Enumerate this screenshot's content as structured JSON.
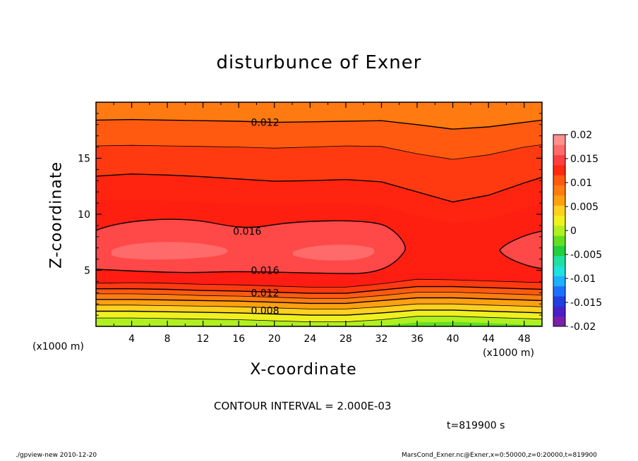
{
  "chart_data": {
    "type": "heatmap",
    "title": "disturbunce of Exner",
    "xlabel": "X-coordinate",
    "ylabel": "Z-coordinate",
    "x_unit_label": "(x1000 m)",
    "xlim": [
      0,
      50
    ],
    "ylim": [
      0,
      20
    ],
    "x_ticks": [
      4,
      8,
      12,
      16,
      20,
      24,
      28,
      32,
      36,
      40,
      44,
      48
    ],
    "y_ticks": [
      5,
      10,
      15
    ],
    "colorbar": {
      "range": [
        -0.02,
        0.02
      ],
      "ticks": [
        "0.02",
        "0.015",
        "0.01",
        "0.005",
        "0",
        "-0.005",
        "-0.01",
        "-0.015",
        "-0.02"
      ],
      "colors": [
        "#7a1fa8",
        "#4a1fc8",
        "#1f3fe0",
        "#1f6fff",
        "#1fb0ff",
        "#20e0e0",
        "#20e0a0",
        "#20d040",
        "#60e020",
        "#b0f020",
        "#f0f020",
        "#ffd020",
        "#ffa010",
        "#ff7d10",
        "#ff5a10",
        "#ff2a10",
        "#ff4040",
        "#ff6a6a",
        "#ff9090"
      ]
    },
    "contour_interval_text": "CONTOUR INTERVAL = 2.000E-03",
    "contour_labels": [
      {
        "value": "0.012",
        "x": 15,
        "z": 18.2
      },
      {
        "value": "0.016",
        "x": 13,
        "z": 8.5
      },
      {
        "value": "0.016",
        "x": 15,
        "z": 5.0
      },
      {
        "value": "0.012",
        "x": 15,
        "z": 3.0
      },
      {
        "value": "0.008",
        "x": 15,
        "z": 1.4
      }
    ],
    "time_text": "t=819900 s"
  },
  "footer": {
    "left": "./gpview-new   2010-12-20",
    "right": "MarsCond_Exner.nc@Exner,x=0:50000,z=0:20000,t=819900"
  }
}
